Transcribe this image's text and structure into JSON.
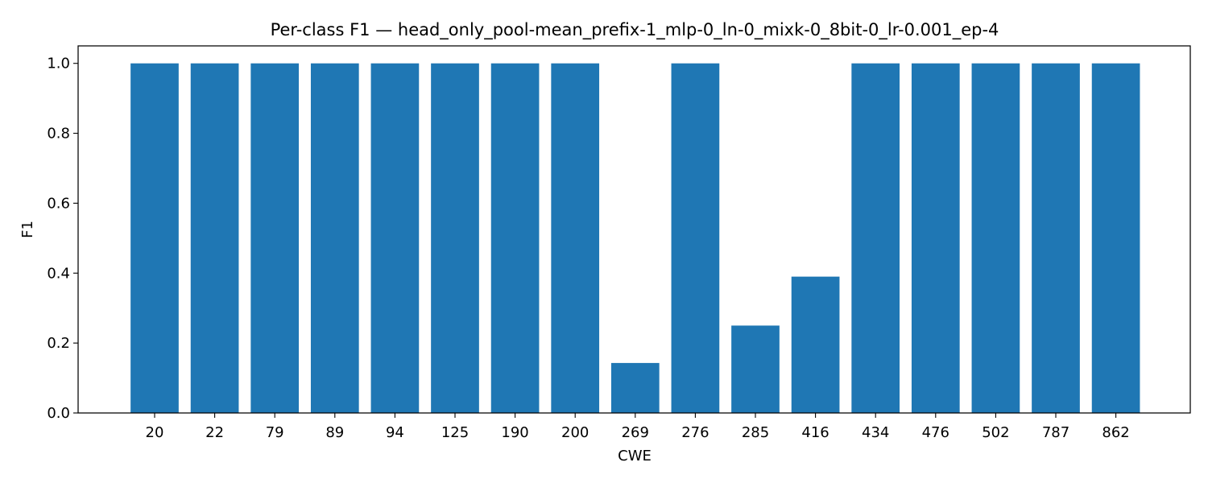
{
  "chart_data": {
    "type": "bar",
    "title": "Per-class F1 — head_only_pool-mean_prefix-1_mlp-0_ln-0_mixk-0_8bit-0_lr-0.001_ep-4",
    "xlabel": "CWE",
    "ylabel": "F1",
    "categories": [
      "20",
      "22",
      "79",
      "89",
      "94",
      "125",
      "190",
      "200",
      "269",
      "276",
      "285",
      "416",
      "434",
      "476",
      "502",
      "787",
      "862"
    ],
    "values": [
      1.0,
      1.0,
      1.0,
      1.0,
      1.0,
      1.0,
      1.0,
      1.0,
      0.143,
      1.0,
      0.25,
      0.39,
      1.0,
      1.0,
      1.0,
      1.0,
      1.0
    ],
    "ylim": [
      0,
      1.05
    ],
    "yticks": [
      "0.0",
      "0.2",
      "0.4",
      "0.6",
      "0.8",
      "1.0"
    ],
    "bar_color": "#1f77b4",
    "grid": false
  }
}
